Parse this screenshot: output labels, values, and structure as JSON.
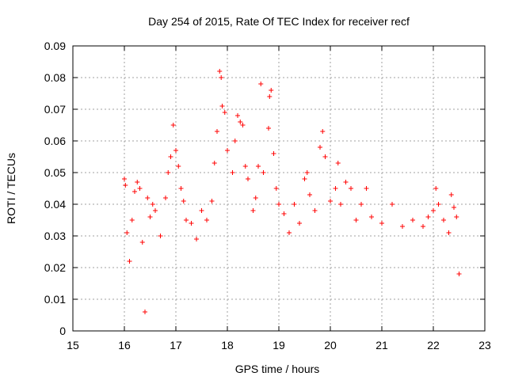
{
  "chart_data": {
    "type": "scatter",
    "title": "Day 254 of 2015, Rate Of TEC Index for receiver recf",
    "xlabel": "GPS time / hours",
    "ylabel": "ROTI / TECUs",
    "xlim": [
      15,
      23
    ],
    "ylim": [
      0,
      0.09
    ],
    "xticks": [
      "15",
      "16",
      "17",
      "18",
      "19",
      "20",
      "21",
      "22",
      "23"
    ],
    "yticks": [
      "0",
      "0.01",
      "0.02",
      "0.03",
      "0.04",
      "0.05",
      "0.06",
      "0.07",
      "0.08",
      "0.09"
    ],
    "grid": true,
    "series": [
      {
        "name": "recf",
        "marker": "+",
        "color": "#ff0000",
        "points": [
          [
            16.0,
            0.048
          ],
          [
            16.02,
            0.046
          ],
          [
            16.05,
            0.031
          ],
          [
            16.1,
            0.022
          ],
          [
            16.15,
            0.035
          ],
          [
            16.2,
            0.044
          ],
          [
            16.25,
            0.047
          ],
          [
            16.3,
            0.045
          ],
          [
            16.35,
            0.028
          ],
          [
            16.4,
            0.006
          ],
          [
            16.45,
            0.042
          ],
          [
            16.5,
            0.036
          ],
          [
            16.55,
            0.04
          ],
          [
            16.6,
            0.038
          ],
          [
            16.7,
            0.03
          ],
          [
            16.8,
            0.042
          ],
          [
            16.85,
            0.05
          ],
          [
            16.9,
            0.055
          ],
          [
            16.95,
            0.065
          ],
          [
            17.0,
            0.057
          ],
          [
            17.05,
            0.052
          ],
          [
            17.1,
            0.045
          ],
          [
            17.15,
            0.041
          ],
          [
            17.2,
            0.035
          ],
          [
            17.3,
            0.034
          ],
          [
            17.4,
            0.029
          ],
          [
            17.5,
            0.038
          ],
          [
            17.6,
            0.035
          ],
          [
            17.7,
            0.041
          ],
          [
            17.75,
            0.053
          ],
          [
            17.8,
            0.063
          ],
          [
            17.85,
            0.082
          ],
          [
            17.88,
            0.08
          ],
          [
            17.9,
            0.071
          ],
          [
            17.95,
            0.069
          ],
          [
            18.0,
            0.057
          ],
          [
            18.1,
            0.05
          ],
          [
            18.15,
            0.06
          ],
          [
            18.2,
            0.068
          ],
          [
            18.25,
            0.066
          ],
          [
            18.3,
            0.065
          ],
          [
            18.35,
            0.052
          ],
          [
            18.4,
            0.048
          ],
          [
            18.5,
            0.038
          ],
          [
            18.55,
            0.042
          ],
          [
            18.6,
            0.052
          ],
          [
            18.65,
            0.078
          ],
          [
            18.7,
            0.05
          ],
          [
            18.8,
            0.064
          ],
          [
            18.82,
            0.074
          ],
          [
            18.85,
            0.076
          ],
          [
            18.9,
            0.056
          ],
          [
            18.95,
            0.045
          ],
          [
            19.0,
            0.04
          ],
          [
            19.1,
            0.037
          ],
          [
            19.2,
            0.031
          ],
          [
            19.3,
            0.04
          ],
          [
            19.4,
            0.034
          ],
          [
            19.5,
            0.048
          ],
          [
            19.55,
            0.05
          ],
          [
            19.6,
            0.043
          ],
          [
            19.7,
            0.038
          ],
          [
            19.8,
            0.058
          ],
          [
            19.85,
            0.063
          ],
          [
            19.9,
            0.055
          ],
          [
            20.0,
            0.041
          ],
          [
            20.1,
            0.045
          ],
          [
            20.15,
            0.053
          ],
          [
            20.2,
            0.04
          ],
          [
            20.3,
            0.047
          ],
          [
            20.4,
            0.045
          ],
          [
            20.5,
            0.035
          ],
          [
            20.6,
            0.04
          ],
          [
            20.7,
            0.045
          ],
          [
            20.8,
            0.036
          ],
          [
            21.0,
            0.034
          ],
          [
            21.2,
            0.04
          ],
          [
            21.4,
            0.033
          ],
          [
            21.6,
            0.035
          ],
          [
            21.8,
            0.033
          ],
          [
            21.9,
            0.036
          ],
          [
            22.0,
            0.038
          ],
          [
            22.05,
            0.045
          ],
          [
            22.1,
            0.04
          ],
          [
            22.2,
            0.035
          ],
          [
            22.3,
            0.031
          ],
          [
            22.35,
            0.043
          ],
          [
            22.4,
            0.039
          ],
          [
            22.45,
            0.036
          ],
          [
            22.5,
            0.018
          ]
        ]
      }
    ]
  }
}
